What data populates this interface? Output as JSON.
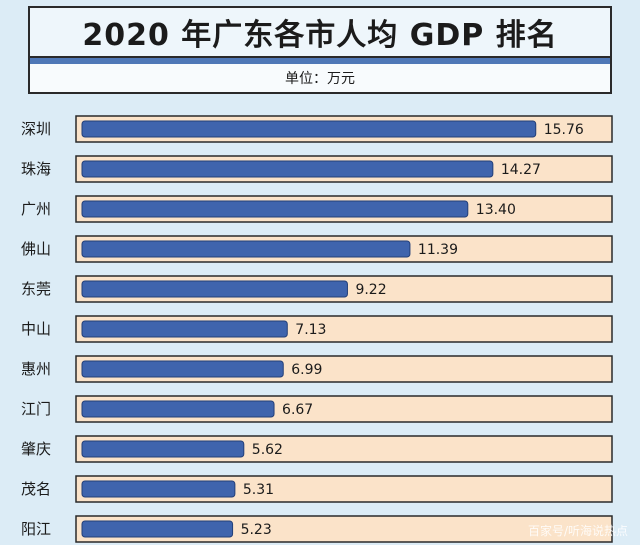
{
  "header": {
    "title": "2020 年广东各市人均 GDP 排名",
    "unit": "单位：万元"
  },
  "watermark": "百家号/听海说热点",
  "colors": {
    "bar": "#3f64ad",
    "bar_edge": "#233f78",
    "track": "#fbe3c9",
    "track_edge": "#2a2a2a",
    "background": "#dcecf6"
  },
  "chart_data": {
    "type": "bar",
    "orientation": "horizontal",
    "title": "2020 年广东各市人均 GDP 排名",
    "unit": "万元",
    "categories": [
      "深圳",
      "珠海",
      "广州",
      "佛山",
      "东莞",
      "中山",
      "惠州",
      "江门",
      "肇庆",
      "茂名",
      "阳江"
    ],
    "values": [
      15.76,
      14.27,
      13.4,
      11.39,
      9.22,
      7.13,
      6.99,
      6.67,
      5.62,
      5.31,
      5.23
    ],
    "value_labels": [
      "15.76",
      "14.27",
      "13.40",
      "11.39",
      "9.22",
      "7.13",
      "6.99",
      "6.67",
      "5.62",
      "5.31",
      "5.23"
    ],
    "xlim": [
      0,
      18.2
    ],
    "grid": false,
    "legend": "none"
  }
}
